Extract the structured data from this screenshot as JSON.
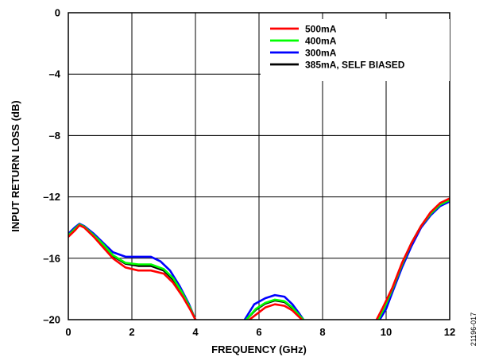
{
  "chart_data": {
    "type": "line",
    "title": "",
    "xlabel": "FREQUENCY (GHz)",
    "ylabel": "INPUT RETURN LOSS (dB)",
    "xlim": [
      0,
      12
    ],
    "ylim": [
      -20,
      0
    ],
    "x_ticks": [
      0,
      2,
      4,
      6,
      8,
      10,
      12
    ],
    "y_ticks": [
      0,
      -4,
      -8,
      -12,
      -16,
      -20
    ],
    "x_tick_labels": [
      "0",
      "2",
      "4",
      "6",
      "8",
      "10",
      "12"
    ],
    "y_tick_labels": [
      "0",
      "–4",
      "–8",
      "–12",
      "–16",
      "–20"
    ],
    "grid": true,
    "legend_position": "top-right",
    "figure_id": "21196-017",
    "series": [
      {
        "name": "500mA",
        "color": "#ff0000",
        "segments": [
          [
            [
              0,
              -14.6
            ],
            [
              0.2,
              -14.2
            ],
            [
              0.35,
              -13.85
            ],
            [
              0.5,
              -14.0
            ],
            [
              0.8,
              -14.6
            ],
            [
              1.1,
              -15.3
            ],
            [
              1.4,
              -16.0
            ],
            [
              1.8,
              -16.6
            ],
            [
              2.2,
              -16.8
            ],
            [
              2.6,
              -16.8
            ],
            [
              3.0,
              -17.0
            ],
            [
              3.3,
              -17.6
            ],
            [
              3.6,
              -18.5
            ],
            [
              3.85,
              -19.4
            ],
            [
              4.0,
              -20
            ]
          ],
          [
            [
              5.7,
              -20
            ],
            [
              5.95,
              -19.6
            ],
            [
              6.2,
              -19.2
            ],
            [
              6.5,
              -19.0
            ],
            [
              6.8,
              -19.1
            ],
            [
              7.05,
              -19.4
            ],
            [
              7.3,
              -19.9
            ],
            [
              7.35,
              -20
            ]
          ],
          [
            [
              9.7,
              -20
            ],
            [
              9.9,
              -19.2
            ],
            [
              10.2,
              -17.9
            ],
            [
              10.5,
              -16.3
            ],
            [
              10.8,
              -15.0
            ],
            [
              11.1,
              -13.9
            ],
            [
              11.4,
              -13.0
            ],
            [
              11.7,
              -12.4
            ],
            [
              12.0,
              -12.1
            ]
          ]
        ]
      },
      {
        "name": "400mA",
        "color": "#00ff00",
        "segments": [
          [
            [
              0,
              -14.5
            ],
            [
              0.2,
              -14.1
            ],
            [
              0.35,
              -13.8
            ],
            [
              0.5,
              -13.95
            ],
            [
              0.8,
              -14.5
            ],
            [
              1.1,
              -15.1
            ],
            [
              1.4,
              -15.8
            ],
            [
              1.8,
              -16.3
            ],
            [
              2.2,
              -16.4
            ],
            [
              2.6,
              -16.4
            ],
            [
              3.0,
              -16.7
            ],
            [
              3.3,
              -17.3
            ],
            [
              3.6,
              -18.3
            ],
            [
              3.85,
              -19.3
            ],
            [
              4.0,
              -20
            ]
          ],
          [
            [
              5.6,
              -20
            ],
            [
              5.9,
              -19.3
            ],
            [
              6.2,
              -18.9
            ],
            [
              6.5,
              -18.7
            ],
            [
              6.8,
              -18.8
            ],
            [
              7.05,
              -19.2
            ],
            [
              7.3,
              -19.8
            ],
            [
              7.4,
              -20
            ]
          ],
          [
            [
              9.75,
              -20
            ],
            [
              9.95,
              -19.2
            ],
            [
              10.2,
              -18.0
            ],
            [
              10.5,
              -16.4
            ],
            [
              10.8,
              -15.0
            ],
            [
              11.1,
              -13.9
            ],
            [
              11.4,
              -13.1
            ],
            [
              11.7,
              -12.5
            ],
            [
              12.0,
              -12.2
            ]
          ]
        ]
      },
      {
        "name": "300mA",
        "color": "#0000ff",
        "segments": [
          [
            [
              0,
              -14.4
            ],
            [
              0.2,
              -14.0
            ],
            [
              0.35,
              -13.75
            ],
            [
              0.5,
              -13.9
            ],
            [
              0.8,
              -14.4
            ],
            [
              1.1,
              -15.0
            ],
            [
              1.4,
              -15.6
            ],
            [
              1.8,
              -15.9
            ],
            [
              2.2,
              -15.9
            ],
            [
              2.6,
              -15.9
            ],
            [
              2.9,
              -16.2
            ],
            [
              3.2,
              -16.8
            ],
            [
              3.5,
              -17.8
            ],
            [
              3.8,
              -19.0
            ],
            [
              4.0,
              -20
            ]
          ],
          [
            [
              5.55,
              -20
            ],
            [
              5.85,
              -19.0
            ],
            [
              6.2,
              -18.6
            ],
            [
              6.5,
              -18.4
            ],
            [
              6.8,
              -18.5
            ],
            [
              7.05,
              -19.0
            ],
            [
              7.3,
              -19.7
            ],
            [
              7.4,
              -20
            ]
          ],
          [
            [
              9.8,
              -20
            ],
            [
              10.0,
              -19.3
            ],
            [
              10.2,
              -18.2
            ],
            [
              10.5,
              -16.6
            ],
            [
              10.8,
              -15.2
            ],
            [
              11.1,
              -14.0
            ],
            [
              11.4,
              -13.2
            ],
            [
              11.7,
              -12.6
            ],
            [
              12.0,
              -12.3
            ]
          ]
        ]
      },
      {
        "name": "385mA, SELF BIASED",
        "color": "#000000",
        "segments": [
          [
            [
              0,
              -14.5
            ],
            [
              0.2,
              -14.1
            ],
            [
              0.35,
              -13.8
            ],
            [
              0.5,
              -13.95
            ],
            [
              0.8,
              -14.5
            ],
            [
              1.1,
              -15.15
            ],
            [
              1.4,
              -15.85
            ],
            [
              1.8,
              -16.35
            ],
            [
              2.2,
              -16.5
            ],
            [
              2.6,
              -16.5
            ],
            [
              3.0,
              -16.8
            ],
            [
              3.3,
              -17.4
            ],
            [
              3.6,
              -18.4
            ],
            [
              3.85,
              -19.35
            ],
            [
              4.0,
              -20
            ]
          ],
          [
            [
              5.6,
              -20
            ],
            [
              5.9,
              -19.35
            ],
            [
              6.2,
              -18.95
            ],
            [
              6.5,
              -18.75
            ],
            [
              6.8,
              -18.85
            ],
            [
              7.05,
              -19.25
            ],
            [
              7.3,
              -19.85
            ],
            [
              7.38,
              -20
            ]
          ],
          [
            [
              9.75,
              -20
            ],
            [
              9.95,
              -19.2
            ],
            [
              10.2,
              -18.0
            ],
            [
              10.5,
              -16.4
            ],
            [
              10.8,
              -15.0
            ],
            [
              11.1,
              -13.9
            ],
            [
              11.4,
              -13.05
            ],
            [
              11.7,
              -12.45
            ],
            [
              12.0,
              -12.15
            ]
          ]
        ]
      }
    ]
  }
}
